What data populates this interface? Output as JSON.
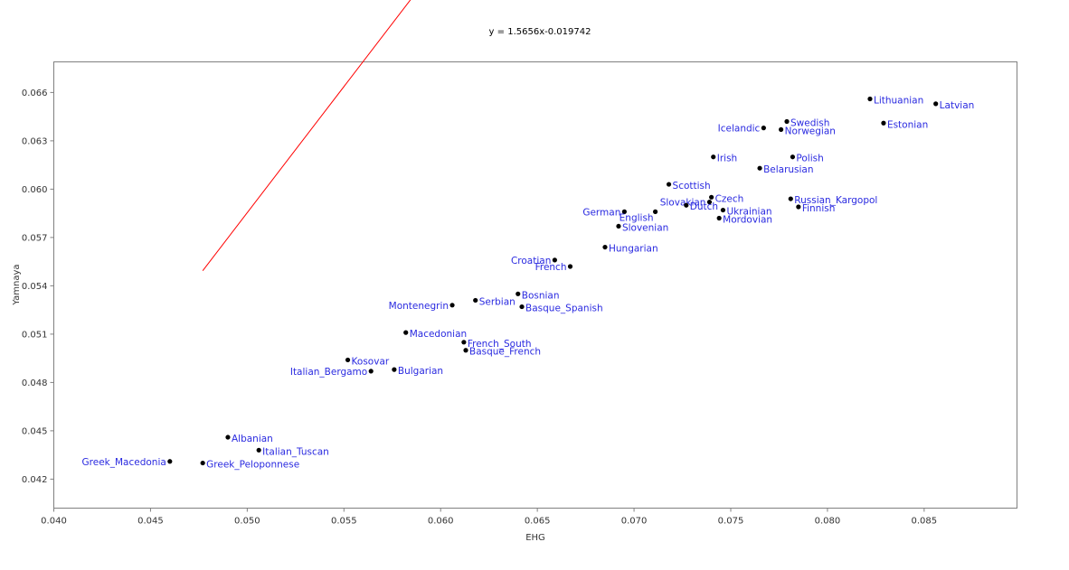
{
  "chart_data": {
    "type": "scatter",
    "title": "y = 1.5656x-0.019742",
    "xlabel": "EHG",
    "ylabel": "Yamnaya",
    "xlim": [
      0.04,
      0.0898
    ],
    "ylim": [
      0.0402,
      0.0679
    ],
    "xticks": [
      "0.040",
      "0.045",
      "0.050",
      "0.055",
      "0.060",
      "0.065",
      "0.070",
      "0.075",
      "0.080",
      "0.085"
    ],
    "yticks": [
      "0.042",
      "0.045",
      "0.048",
      "0.051",
      "0.054",
      "0.057",
      "0.060",
      "0.063",
      "0.066"
    ],
    "trendline": {
      "slope": 1.5656,
      "intercept": -0.019742,
      "x_start": 0.0477,
      "x_end": 0.0822,
      "color": "#ff0000"
    },
    "grid": false,
    "points": [
      {
        "label": "Lithuanian",
        "x": 0.0822,
        "y": 0.0656,
        "pos": "right"
      },
      {
        "label": "Latvian",
        "x": 0.0856,
        "y": 0.0653,
        "pos": "right"
      },
      {
        "label": "Swedish",
        "x": 0.0779,
        "y": 0.0642,
        "pos": "right"
      },
      {
        "label": "Estonian",
        "x": 0.0829,
        "y": 0.0641,
        "pos": "right"
      },
      {
        "label": "Icelandic",
        "x": 0.0767,
        "y": 0.0638,
        "pos": "left"
      },
      {
        "label": "Norwegian",
        "x": 0.0776,
        "y": 0.0637,
        "pos": "right"
      },
      {
        "label": "Irish",
        "x": 0.0741,
        "y": 0.062,
        "pos": "right"
      },
      {
        "label": "Polish",
        "x": 0.0782,
        "y": 0.062,
        "pos": "right"
      },
      {
        "label": "Belarusian",
        "x": 0.0765,
        "y": 0.0613,
        "pos": "right"
      },
      {
        "label": "Scottish",
        "x": 0.0718,
        "y": 0.0603,
        "pos": "right"
      },
      {
        "label": "Czech",
        "x": 0.074,
        "y": 0.0595,
        "pos": "right"
      },
      {
        "label": "Russian_Kargopol",
        "x": 0.0781,
        "y": 0.0594,
        "pos": "right"
      },
      {
        "label": "Slovakian",
        "x": 0.0739,
        "y": 0.0592,
        "pos": "left"
      },
      {
        "label": "Dutch",
        "x": 0.0727,
        "y": 0.059,
        "pos": "right"
      },
      {
        "label": "Finnish",
        "x": 0.0785,
        "y": 0.0589,
        "pos": "right"
      },
      {
        "label": "Ukrainian",
        "x": 0.0746,
        "y": 0.0587,
        "pos": "right"
      },
      {
        "label": "German",
        "x": 0.0695,
        "y": 0.0586,
        "pos": "left"
      },
      {
        "label": "English",
        "x": 0.0711,
        "y": 0.0586,
        "pos": "below-left"
      },
      {
        "label": "Mordovian",
        "x": 0.0744,
        "y": 0.0582,
        "pos": "right"
      },
      {
        "label": "Slovenian",
        "x": 0.0692,
        "y": 0.0577,
        "pos": "right"
      },
      {
        "label": "Hungarian",
        "x": 0.0685,
        "y": 0.0564,
        "pos": "right"
      },
      {
        "label": "Croatian",
        "x": 0.0659,
        "y": 0.0556,
        "pos": "left"
      },
      {
        "label": "French",
        "x": 0.0667,
        "y": 0.0552,
        "pos": "left"
      },
      {
        "label": "Bosnian",
        "x": 0.064,
        "y": 0.0535,
        "pos": "right"
      },
      {
        "label": "Serbian",
        "x": 0.0618,
        "y": 0.0531,
        "pos": "right"
      },
      {
        "label": "Montenegrin",
        "x": 0.0606,
        "y": 0.0528,
        "pos": "left"
      },
      {
        "label": "Basque_Spanish",
        "x": 0.0642,
        "y": 0.0527,
        "pos": "right"
      },
      {
        "label": "Macedonian",
        "x": 0.0582,
        "y": 0.0511,
        "pos": "right"
      },
      {
        "label": "French_South",
        "x": 0.0612,
        "y": 0.0505,
        "pos": "right"
      },
      {
        "label": "Basque_French",
        "x": 0.0613,
        "y": 0.05,
        "pos": "right"
      },
      {
        "label": "Kosovar",
        "x": 0.0552,
        "y": 0.0494,
        "pos": "right"
      },
      {
        "label": "Italian_Bergamo",
        "x": 0.0564,
        "y": 0.0487,
        "pos": "left"
      },
      {
        "label": "Bulgarian",
        "x": 0.0576,
        "y": 0.0488,
        "pos": "right"
      },
      {
        "label": "Albanian",
        "x": 0.049,
        "y": 0.0446,
        "pos": "right"
      },
      {
        "label": "Italian_Tuscan",
        "x": 0.0506,
        "y": 0.0438,
        "pos": "right"
      },
      {
        "label": "Greek_Macedonia",
        "x": 0.046,
        "y": 0.0431,
        "pos": "left"
      },
      {
        "label": "Greek_Peloponnese",
        "x": 0.0477,
        "y": 0.043,
        "pos": "right"
      }
    ]
  }
}
